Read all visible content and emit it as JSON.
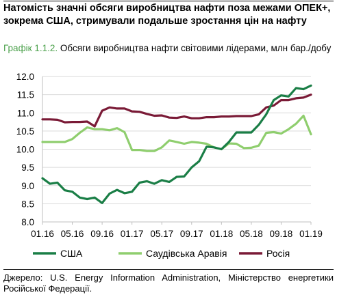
{
  "headline": "Натомість значні обсяги виробництва нафти поза межами ОПЕК+, зокрема США, стримували подальше зростання цін на нафту",
  "caption": {
    "figure_number": "Графік 1.1.2.",
    "text": "Обсяги виробництва нафти світовими лідерами, млн бар./добу"
  },
  "source": "Джерело: U.S. Energy Information Administration, Міністерство енергетики Російської Федерації.",
  "chart_data": {
    "type": "line",
    "title": "",
    "xlabel": "",
    "ylabel": "",
    "ylim": [
      8.0,
      12.0
    ],
    "yticks": [
      "8.0",
      "8.5",
      "9.0",
      "9.5",
      "10.0",
      "10.5",
      "11.0",
      "11.5",
      "12.0"
    ],
    "xticks": [
      "01.16",
      "05.16",
      "09.16",
      "01.17",
      "05.17",
      "09.17",
      "01.18",
      "05.18",
      "09.18",
      "01.19"
    ],
    "x": [
      "01.16",
      "02.16",
      "03.16",
      "04.16",
      "05.16",
      "06.16",
      "07.16",
      "08.16",
      "09.16",
      "10.16",
      "11.16",
      "12.16",
      "01.17",
      "02.17",
      "03.17",
      "04.17",
      "05.17",
      "06.17",
      "07.17",
      "08.17",
      "09.17",
      "10.17",
      "11.17",
      "12.17",
      "01.18",
      "02.18",
      "03.18",
      "04.18",
      "05.18",
      "06.18",
      "07.18",
      "08.18",
      "09.18",
      "10.18",
      "11.18",
      "12.18",
      "01.19"
    ],
    "grid": "horizontal",
    "legend_position": "bottom",
    "series": [
      {
        "name": "США",
        "color": "#1a7e46",
        "values": [
          9.2,
          9.05,
          9.08,
          8.87,
          8.83,
          8.67,
          8.63,
          8.67,
          8.52,
          8.78,
          8.88,
          8.79,
          8.83,
          9.08,
          9.12,
          9.05,
          9.15,
          9.1,
          9.24,
          9.25,
          9.5,
          9.67,
          10.07,
          10.05,
          10.0,
          10.2,
          10.46,
          10.46,
          10.46,
          10.67,
          10.96,
          11.35,
          11.48,
          11.45,
          11.68,
          11.65,
          11.75
        ]
      },
      {
        "name": "Саудівська Аравія",
        "color": "#8fce6e",
        "values": [
          10.2,
          10.2,
          10.2,
          10.2,
          10.28,
          10.45,
          10.6,
          10.55,
          10.55,
          10.52,
          10.58,
          10.47,
          9.98,
          9.98,
          9.95,
          9.95,
          10.05,
          10.24,
          10.2,
          10.15,
          10.2,
          10.18,
          10.15,
          10.05,
          10.0,
          10.16,
          10.15,
          10.03,
          10.04,
          10.1,
          10.45,
          10.47,
          10.43,
          10.55,
          10.7,
          10.92,
          10.41
        ]
      },
      {
        "name": "Росія",
        "color": "#7a1a36",
        "values": [
          10.82,
          10.82,
          10.81,
          10.74,
          10.75,
          10.75,
          10.76,
          10.63,
          11.06,
          11.15,
          11.12,
          11.12,
          11.04,
          11.03,
          10.97,
          10.92,
          10.93,
          10.87,
          10.86,
          10.9,
          10.85,
          10.85,
          10.88,
          10.88,
          10.9,
          10.9,
          10.91,
          10.91,
          10.91,
          10.96,
          11.15,
          11.2,
          11.35,
          11.35,
          11.4,
          11.42,
          11.5
        ]
      }
    ]
  }
}
